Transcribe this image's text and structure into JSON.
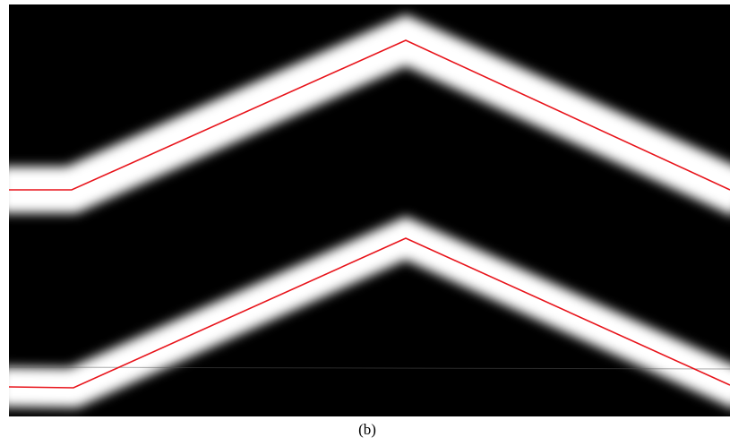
{
  "caption": "(b)"
}
